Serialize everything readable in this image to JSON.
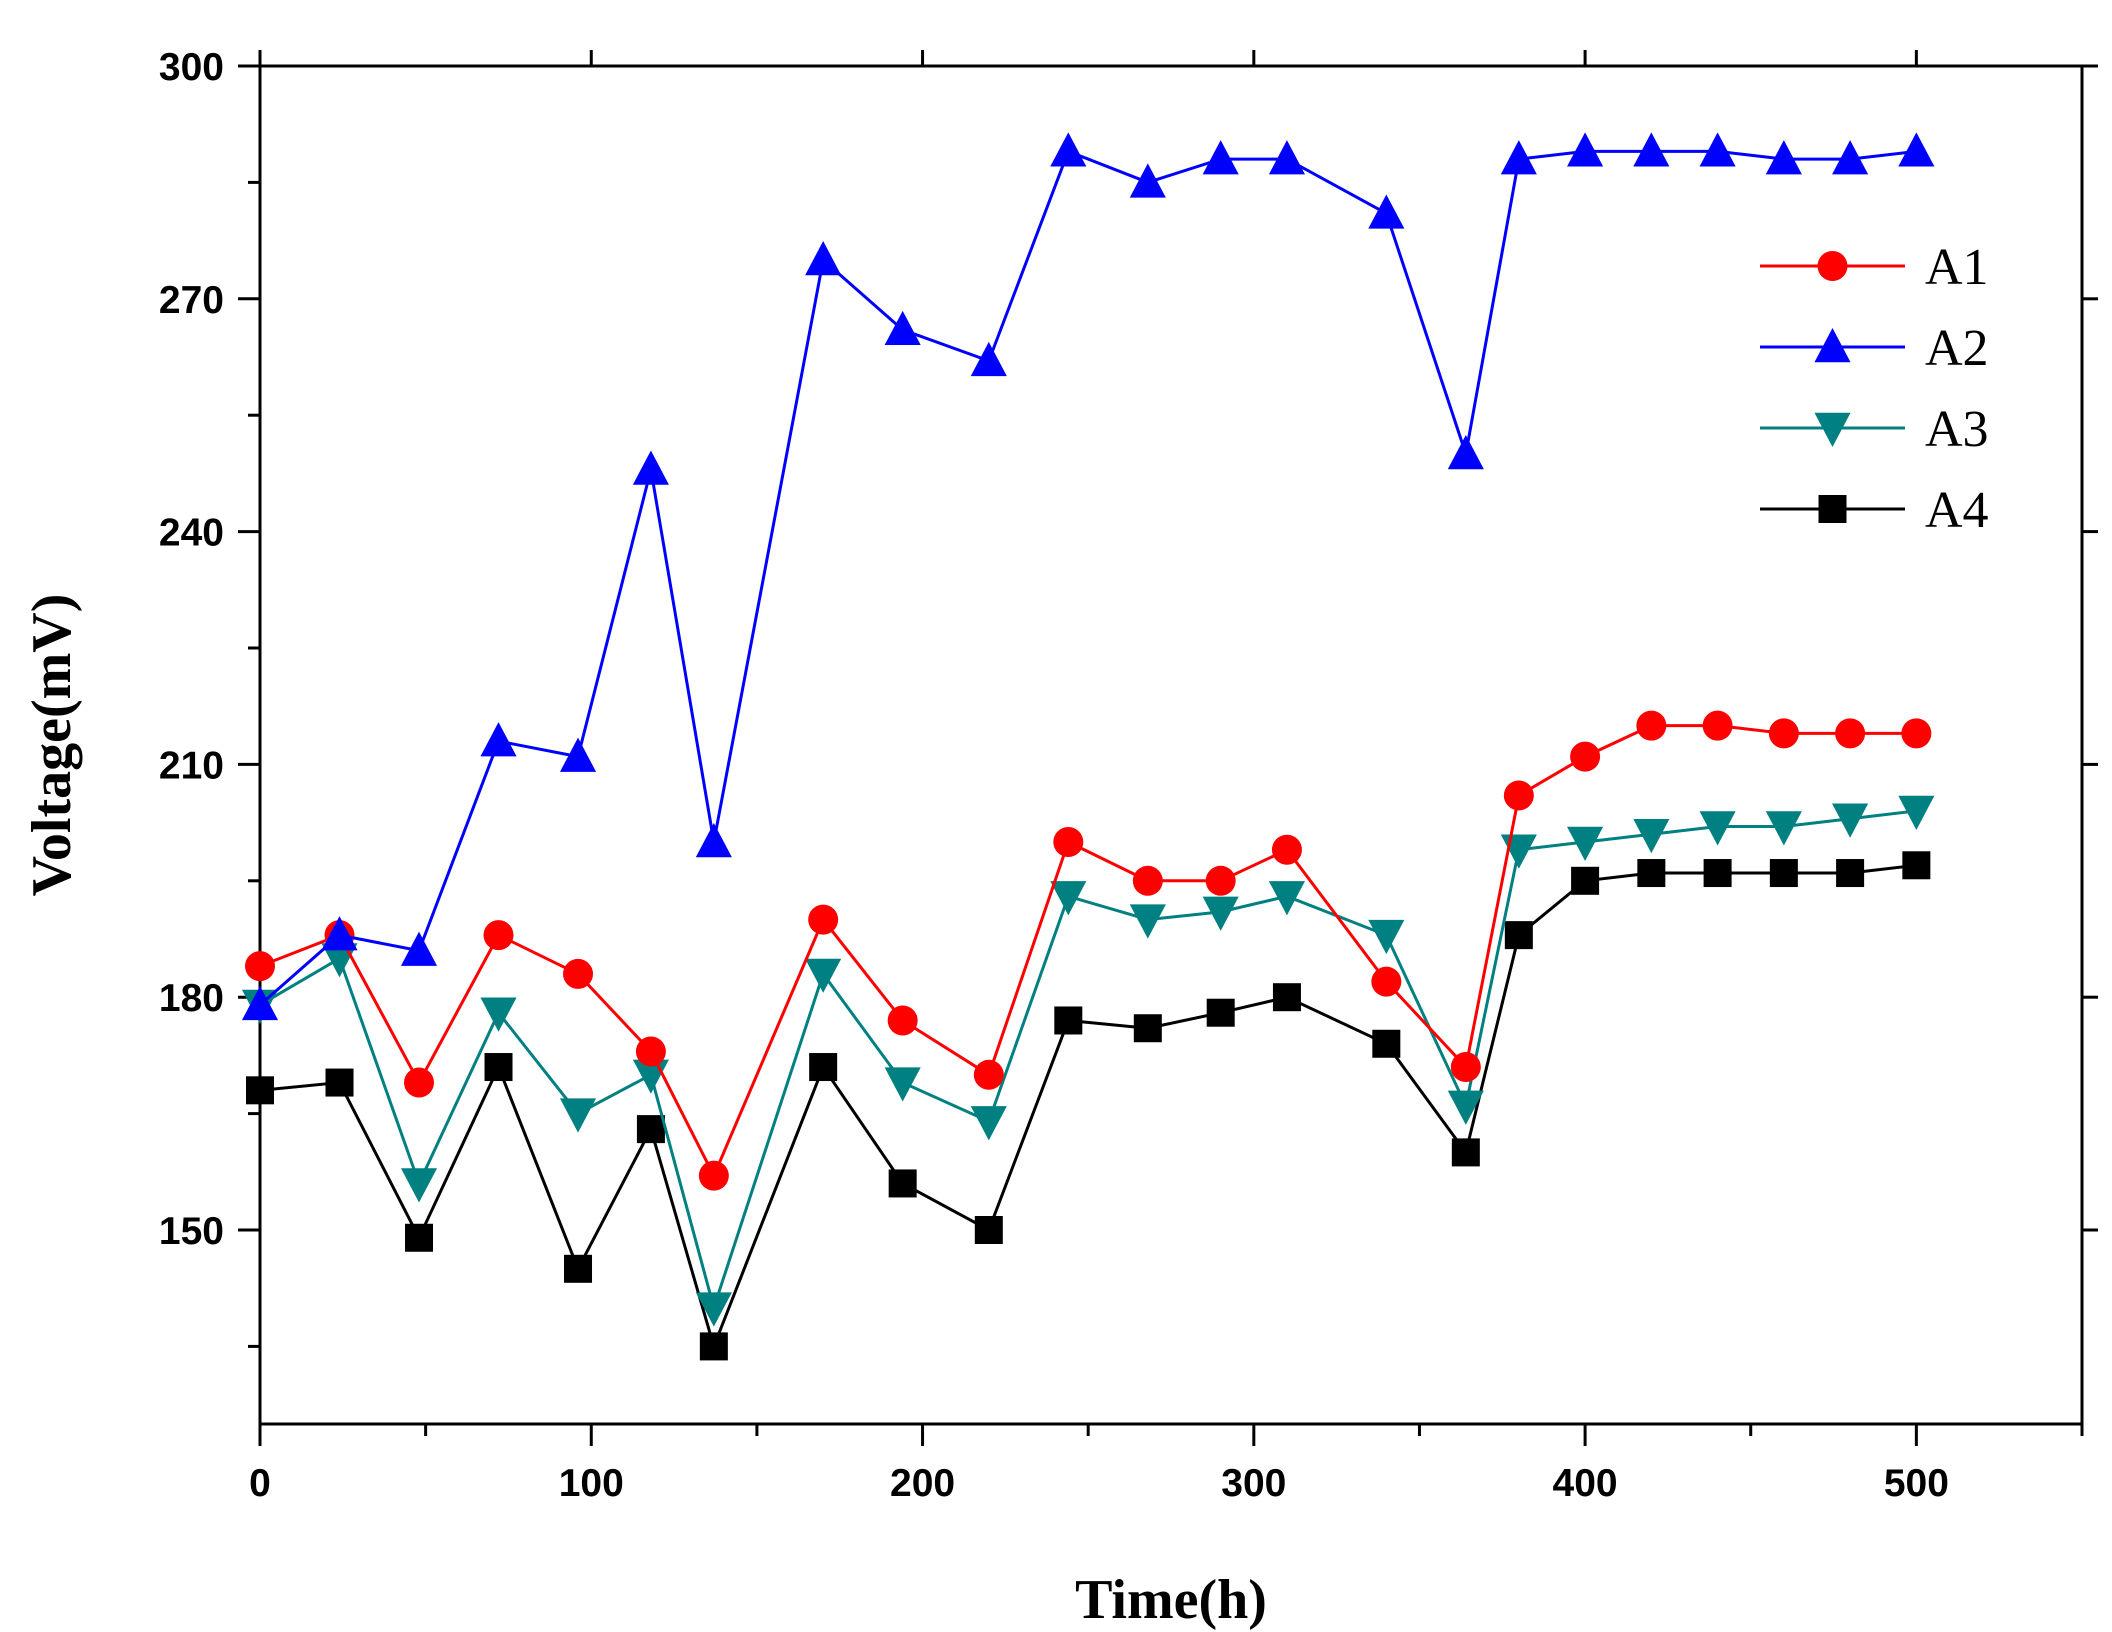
{
  "chart_data": {
    "type": "line",
    "title": "",
    "xlabel": "Time(h)",
    "ylabel": "Voltage(mV)",
    "xlim": [
      0,
      550
    ],
    "ylim": [
      125,
      300
    ],
    "xticks": [
      0,
      100,
      200,
      300,
      400,
      500
    ],
    "yticks": [
      150,
      180,
      210,
      240,
      270,
      300
    ],
    "grid": false,
    "legend_position": "top-right",
    "series": [
      {
        "name": "A1",
        "color": "#ff0000",
        "marker": "circle",
        "points": [
          [
            0,
            184
          ],
          [
            24,
            188
          ],
          [
            48,
            169
          ],
          [
            72,
            188
          ],
          [
            96,
            183
          ],
          [
            118,
            173
          ],
          [
            137,
            157
          ],
          [
            170,
            190
          ],
          [
            194,
            177
          ],
          [
            220,
            170
          ],
          [
            244,
            200
          ],
          [
            268,
            195
          ],
          [
            290,
            195
          ],
          [
            310,
            199
          ],
          [
            340,
            182
          ],
          [
            364,
            171
          ],
          [
            380,
            206
          ],
          [
            400,
            211
          ],
          [
            420,
            215
          ],
          [
            440,
            215
          ],
          [
            460,
            214
          ],
          [
            480,
            214
          ],
          [
            500,
            214
          ]
        ]
      },
      {
        "name": "A2",
        "color": "#0000ff",
        "marker": "triangle-up",
        "points": [
          [
            0,
            179
          ],
          [
            24,
            188
          ],
          [
            48,
            186
          ],
          [
            72,
            213
          ],
          [
            96,
            211
          ],
          [
            118,
            248
          ],
          [
            137,
            200
          ],
          [
            170,
            275
          ],
          [
            194,
            266
          ],
          [
            220,
            262
          ],
          [
            244,
            289
          ],
          [
            268,
            285
          ],
          [
            290,
            288
          ],
          [
            310,
            288
          ],
          [
            340,
            281
          ],
          [
            364,
            250
          ],
          [
            380,
            288
          ],
          [
            400,
            289
          ],
          [
            420,
            289
          ],
          [
            440,
            289
          ],
          [
            460,
            288
          ],
          [
            480,
            288
          ],
          [
            500,
            289
          ]
        ]
      },
      {
        "name": "A3",
        "color": "#008080",
        "marker": "triangle-down",
        "points": [
          [
            0,
            179
          ],
          [
            24,
            185
          ],
          [
            48,
            156
          ],
          [
            72,
            178
          ],
          [
            96,
            165
          ],
          [
            118,
            170
          ],
          [
            137,
            140
          ],
          [
            170,
            183
          ],
          [
            194,
            169
          ],
          [
            220,
            164
          ],
          [
            244,
            193
          ],
          [
            268,
            190
          ],
          [
            290,
            191
          ],
          [
            310,
            193
          ],
          [
            340,
            188
          ],
          [
            364,
            166
          ],
          [
            380,
            199
          ],
          [
            400,
            200
          ],
          [
            420,
            201
          ],
          [
            440,
            202
          ],
          [
            460,
            202
          ],
          [
            480,
            203
          ],
          [
            500,
            204
          ]
        ]
      },
      {
        "name": "A4",
        "color": "#000000",
        "marker": "square",
        "points": [
          [
            0,
            168
          ],
          [
            24,
            169
          ],
          [
            48,
            149
          ],
          [
            72,
            171
          ],
          [
            96,
            145
          ],
          [
            118,
            163
          ],
          [
            137,
            135
          ],
          [
            170,
            171
          ],
          [
            194,
            156
          ],
          [
            220,
            150
          ],
          [
            244,
            177
          ],
          [
            268,
            176
          ],
          [
            290,
            178
          ],
          [
            310,
            180
          ],
          [
            340,
            174
          ],
          [
            364,
            160
          ],
          [
            380,
            188
          ],
          [
            400,
            195
          ],
          [
            420,
            196
          ],
          [
            440,
            196
          ],
          [
            460,
            196
          ],
          [
            480,
            196
          ],
          [
            500,
            197
          ]
        ]
      }
    ]
  }
}
